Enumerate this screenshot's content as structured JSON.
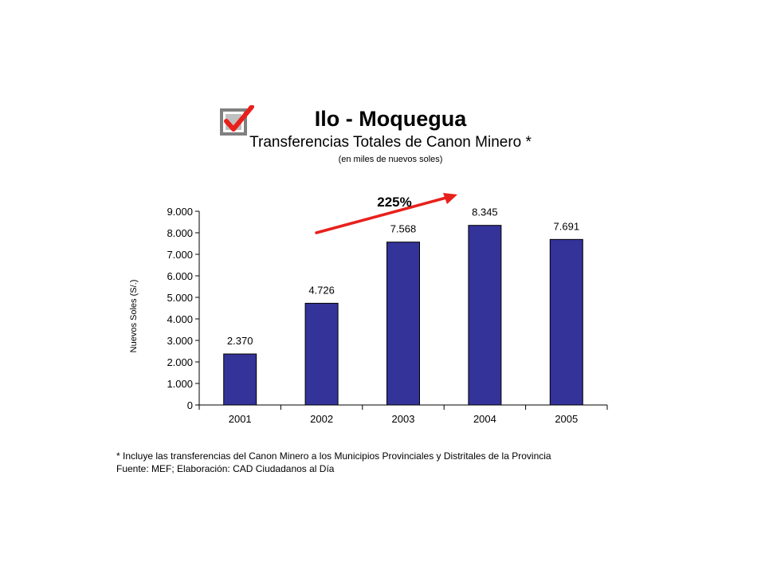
{
  "header": {
    "title": "Ilo - Moquegua",
    "subtitle": "Transferencias Totales de Canon Minero *",
    "units_note": "(en miles de nuevos soles)",
    "check_icon": "checkbox-check-icon"
  },
  "annotation": {
    "growth_label": "225%",
    "arrow_color": "#e8201c"
  },
  "colors": {
    "bar": "#333399",
    "check": "#e8201c",
    "box": "#808080"
  },
  "chart_data": {
    "type": "bar",
    "title": "Transferencias Totales de Canon Minero *",
    "xlabel": "",
    "ylabel": "Nuevos Soles (S/.)",
    "ylim": [
      0,
      9000
    ],
    "yticks": [
      0,
      1000,
      2000,
      3000,
      4000,
      5000,
      6000,
      7000,
      8000,
      9000
    ],
    "ytick_labels": [
      "0",
      "1.000",
      "2.000",
      "3.000",
      "4.000",
      "5.000",
      "6.000",
      "7.000",
      "8.000",
      "9.000"
    ],
    "categories": [
      "2001",
      "2002",
      "2003",
      "2004",
      "2005"
    ],
    "values": [
      2370,
      4726,
      7568,
      8345,
      7691
    ],
    "value_labels": [
      "2.370",
      "4.726",
      "7.568",
      "8.345",
      "7.691"
    ],
    "grid": false,
    "legend": "none"
  },
  "footer": {
    "note": "* Incluye las transferencias del Canon Minero a los Municipios Provinciales y Distritales de la Provincia",
    "source": "Fuente: MEF; Elaboración: CAD Ciudadanos al Día"
  }
}
